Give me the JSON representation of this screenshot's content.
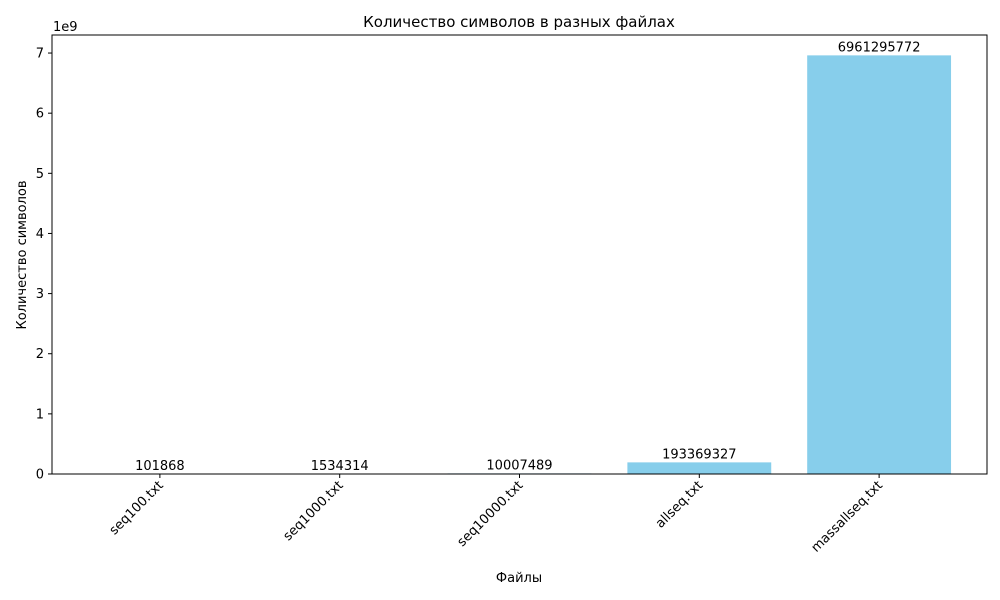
{
  "chart_data": {
    "type": "bar",
    "title": "Количество символов в разных файлах",
    "xlabel": "Файлы",
    "ylabel": "Количество символов",
    "y_scale_label": "1e9",
    "categories": [
      "seq100.txt",
      "seq1000.txt",
      "seq10000.txt",
      "allseq.txt",
      "massallseq.txt"
    ],
    "values": [
      101868,
      1534314,
      10007489,
      193369327,
      6961295772
    ],
    "data_labels": [
      "101868",
      "1534314",
      "10007489",
      "193369327",
      "6961295772"
    ],
    "ylim": [
      0,
      7300000000
    ],
    "yticks": [
      0,
      1000000000,
      2000000000,
      3000000000,
      4000000000,
      5000000000,
      6000000000,
      7000000000
    ],
    "ytick_labels": [
      "0",
      "1",
      "2",
      "3",
      "4",
      "5",
      "6",
      "7"
    ],
    "bar_color": "#87ceeb",
    "grid": false,
    "legend": false
  }
}
